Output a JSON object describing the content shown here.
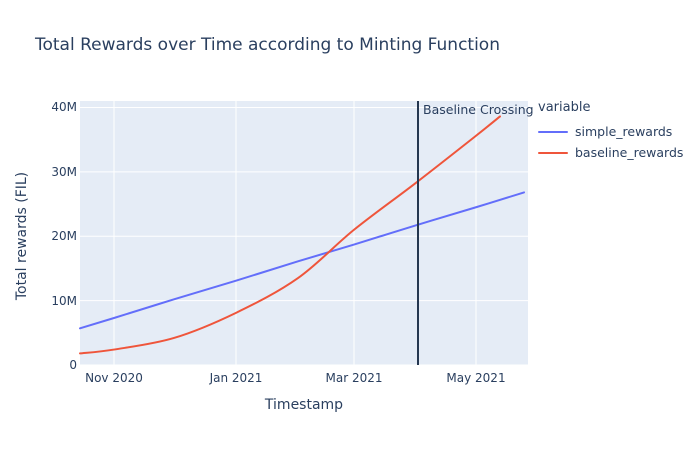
{
  "chart_data": {
    "type": "line",
    "title": "Total Rewards over Time according to Minting Function",
    "xlabel": "Timestamp",
    "ylabel": "Total rewards (FIL)",
    "plot_bgcolor": "#E5ECF6",
    "paper_bgcolor": "#ffffff",
    "grid_color": "#ffffff",
    "grid": true,
    "text_color": "#2a3f5f",
    "x_unit": "date",
    "x_range": [
      "2020-10-15",
      "2021-05-27"
    ],
    "y_range_fil_millions": [
      0,
      41
    ],
    "x_ticks": {
      "dates": [
        "2020-11-01",
        "2021-01-01",
        "2021-03-01",
        "2021-05-01"
      ],
      "labels": [
        "Nov 2020",
        "Jan 2021",
        "Mar 2021",
        "May 2021"
      ]
    },
    "y_ticks": {
      "values_millions": [
        0,
        10,
        20,
        30,
        40
      ],
      "labels": [
        "0",
        "10M",
        "20M",
        "30M",
        "40M"
      ]
    },
    "legend": {
      "title": "variable",
      "position": "top-right-outside"
    },
    "series": [
      {
        "name": "simple_rewards",
        "color": "#636EFA",
        "dates": [
          "2020-10-15",
          "2020-11-01",
          "2020-12-01",
          "2021-01-01",
          "2021-02-01",
          "2021-03-01",
          "2021-04-01",
          "2021-05-01",
          "2021-05-25"
        ],
        "values_millions": [
          5.7,
          7.3,
          10.2,
          13.1,
          16.1,
          18.7,
          21.7,
          24.5,
          26.8
        ]
      },
      {
        "name": "baseline_rewards",
        "color": "#EF553B",
        "dates": [
          "2020-10-15",
          "2020-11-01",
          "2020-12-01",
          "2021-01-01",
          "2021-02-01",
          "2021-03-01",
          "2021-04-01",
          "2021-05-01",
          "2021-05-13"
        ],
        "values_millions": [
          1.8,
          2.4,
          4.2,
          8.1,
          13.5,
          21.0,
          28.3,
          35.6,
          38.6
        ]
      }
    ],
    "annotations": [
      {
        "type": "vline",
        "label": "Baseline Crossing",
        "date": "2021-04-02",
        "line_color": "#253750"
      }
    ]
  }
}
